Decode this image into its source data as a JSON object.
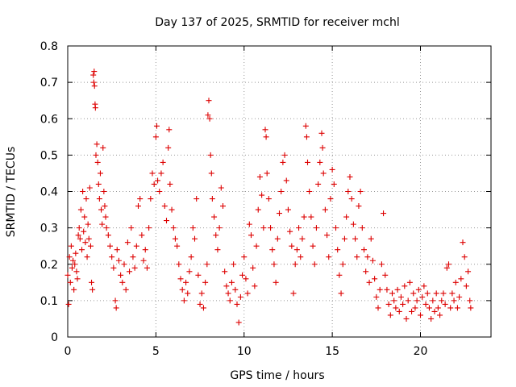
{
  "chart_data": {
    "type": "scatter",
    "title": "Day 137 of 2025, SRMTID for receiver mchl",
    "xlabel": "GPS time / hours",
    "ylabel": "SRMTID / TECUs",
    "xlim": [
      0,
      24
    ],
    "ylim": [
      0,
      0.8
    ],
    "xticks": [
      0,
      5,
      10,
      15,
      20
    ],
    "xtick_labels": [
      "0",
      "5",
      "10",
      "15",
      "20"
    ],
    "yticks": [
      0,
      0.1,
      0.2,
      0.3,
      0.4,
      0.5,
      0.6,
      0.7,
      0.8
    ],
    "ytick_labels": [
      "0",
      "0.1",
      "0.2",
      "0.3",
      "0.4",
      "0.5",
      "0.6",
      "0.7",
      "0.8"
    ],
    "grid": true,
    "marker": "+",
    "color": "#dd0000",
    "series": [
      {
        "name": "SRMTID",
        "points": [
          [
            0.0,
            0.17
          ],
          [
            0.05,
            0.09
          ],
          [
            0.1,
            0.22
          ],
          [
            0.15,
            0.15
          ],
          [
            0.2,
            0.25
          ],
          [
            0.25,
            0.19
          ],
          [
            0.3,
            0.21
          ],
          [
            0.35,
            0.13
          ],
          [
            0.4,
            0.2
          ],
          [
            0.45,
            0.23
          ],
          [
            0.5,
            0.18
          ],
          [
            0.55,
            0.16
          ],
          [
            0.6,
            0.28
          ],
          [
            0.65,
            0.3
          ],
          [
            0.7,
            0.27
          ],
          [
            0.75,
            0.35
          ],
          [
            0.8,
            0.24
          ],
          [
            0.85,
            0.4
          ],
          [
            0.9,
            0.29
          ],
          [
            0.95,
            0.33
          ],
          [
            1.0,
            0.26
          ],
          [
            1.05,
            0.38
          ],
          [
            1.1,
            0.22
          ],
          [
            1.15,
            0.31
          ],
          [
            1.2,
            0.27
          ],
          [
            1.25,
            0.41
          ],
          [
            1.3,
            0.25
          ],
          [
            1.35,
            0.15
          ],
          [
            1.4,
            0.13
          ],
          [
            1.45,
            0.72
          ],
          [
            1.48,
            0.7
          ],
          [
            1.5,
            0.73
          ],
          [
            1.52,
            0.69
          ],
          [
            1.55,
            0.64
          ],
          [
            1.57,
            0.63
          ],
          [
            1.6,
            0.5
          ],
          [
            1.65,
            0.53
          ],
          [
            1.7,
            0.48
          ],
          [
            1.75,
            0.42
          ],
          [
            1.8,
            0.38
          ],
          [
            1.85,
            0.45
          ],
          [
            1.9,
            0.35
          ],
          [
            1.95,
            0.31
          ],
          [
            2.0,
            0.52
          ],
          [
            2.05,
            0.4
          ],
          [
            2.1,
            0.36
          ],
          [
            2.15,
            0.33
          ],
          [
            2.2,
            0.3
          ],
          [
            2.3,
            0.28
          ],
          [
            2.4,
            0.25
          ],
          [
            2.5,
            0.22
          ],
          [
            2.6,
            0.19
          ],
          [
            2.7,
            0.1
          ],
          [
            2.75,
            0.08
          ],
          [
            2.8,
            0.24
          ],
          [
            2.9,
            0.21
          ],
          [
            3.0,
            0.17
          ],
          [
            3.1,
            0.15
          ],
          [
            3.2,
            0.2
          ],
          [
            3.3,
            0.13
          ],
          [
            3.4,
            0.26
          ],
          [
            3.5,
            0.18
          ],
          [
            3.6,
            0.3
          ],
          [
            3.7,
            0.22
          ],
          [
            3.8,
            0.19
          ],
          [
            3.9,
            0.25
          ],
          [
            4.0,
            0.36
          ],
          [
            4.1,
            0.38
          ],
          [
            4.2,
            0.28
          ],
          [
            4.3,
            0.21
          ],
          [
            4.4,
            0.24
          ],
          [
            4.5,
            0.19
          ],
          [
            4.6,
            0.3
          ],
          [
            4.7,
            0.38
          ],
          [
            4.8,
            0.45
          ],
          [
            4.9,
            0.42
          ],
          [
            5.0,
            0.55
          ],
          [
            5.05,
            0.58
          ],
          [
            5.1,
            0.43
          ],
          [
            5.2,
            0.4
          ],
          [
            5.3,
            0.45
          ],
          [
            5.4,
            0.48
          ],
          [
            5.5,
            0.36
          ],
          [
            5.6,
            0.32
          ],
          [
            5.7,
            0.52
          ],
          [
            5.75,
            0.57
          ],
          [
            5.8,
            0.42
          ],
          [
            5.9,
            0.35
          ],
          [
            6.0,
            0.3
          ],
          [
            6.1,
            0.27
          ],
          [
            6.2,
            0.25
          ],
          [
            6.3,
            0.2
          ],
          [
            6.4,
            0.16
          ],
          [
            6.5,
            0.13
          ],
          [
            6.6,
            0.1
          ],
          [
            6.7,
            0.15
          ],
          [
            6.8,
            0.12
          ],
          [
            6.9,
            0.18
          ],
          [
            7.0,
            0.22
          ],
          [
            7.1,
            0.3
          ],
          [
            7.2,
            0.27
          ],
          [
            7.3,
            0.38
          ],
          [
            7.4,
            0.17
          ],
          [
            7.5,
            0.09
          ],
          [
            7.6,
            0.12
          ],
          [
            7.7,
            0.08
          ],
          [
            7.8,
            0.15
          ],
          [
            7.9,
            0.2
          ],
          [
            7.95,
            0.61
          ],
          [
            8.0,
            0.65
          ],
          [
            8.05,
            0.6
          ],
          [
            8.1,
            0.5
          ],
          [
            8.15,
            0.45
          ],
          [
            8.2,
            0.38
          ],
          [
            8.3,
            0.33
          ],
          [
            8.4,
            0.28
          ],
          [
            8.5,
            0.24
          ],
          [
            8.6,
            0.3
          ],
          [
            8.7,
            0.41
          ],
          [
            8.8,
            0.36
          ],
          [
            8.9,
            0.18
          ],
          [
            9.0,
            0.14
          ],
          [
            9.1,
            0.12
          ],
          [
            9.2,
            0.1
          ],
          [
            9.3,
            0.15
          ],
          [
            9.4,
            0.2
          ],
          [
            9.5,
            0.13
          ],
          [
            9.6,
            0.09
          ],
          [
            9.7,
            0.04
          ],
          [
            9.8,
            0.11
          ],
          [
            9.9,
            0.17
          ],
          [
            10.0,
            0.22
          ],
          [
            10.1,
            0.16
          ],
          [
            10.2,
            0.12
          ],
          [
            10.3,
            0.31
          ],
          [
            10.4,
            0.28
          ],
          [
            10.5,
            0.19
          ],
          [
            10.6,
            0.14
          ],
          [
            10.7,
            0.25
          ],
          [
            10.8,
            0.35
          ],
          [
            10.9,
            0.44
          ],
          [
            11.0,
            0.39
          ],
          [
            11.1,
            0.3
          ],
          [
            11.2,
            0.57
          ],
          [
            11.25,
            0.55
          ],
          [
            11.3,
            0.45
          ],
          [
            11.4,
            0.38
          ],
          [
            11.5,
            0.3
          ],
          [
            11.6,
            0.24
          ],
          [
            11.7,
            0.2
          ],
          [
            11.8,
            0.15
          ],
          [
            11.9,
            0.27
          ],
          [
            12.0,
            0.34
          ],
          [
            12.1,
            0.4
          ],
          [
            12.2,
            0.48
          ],
          [
            12.3,
            0.5
          ],
          [
            12.4,
            0.43
          ],
          [
            12.5,
            0.35
          ],
          [
            12.6,
            0.29
          ],
          [
            12.7,
            0.25
          ],
          [
            12.8,
            0.12
          ],
          [
            12.9,
            0.2
          ],
          [
            13.0,
            0.24
          ],
          [
            13.1,
            0.3
          ],
          [
            13.2,
            0.22
          ],
          [
            13.3,
            0.27
          ],
          [
            13.4,
            0.33
          ],
          [
            13.5,
            0.58
          ],
          [
            13.55,
            0.55
          ],
          [
            13.6,
            0.48
          ],
          [
            13.7,
            0.4
          ],
          [
            13.8,
            0.33
          ],
          [
            13.9,
            0.25
          ],
          [
            14.0,
            0.2
          ],
          [
            14.1,
            0.3
          ],
          [
            14.2,
            0.42
          ],
          [
            14.3,
            0.48
          ],
          [
            14.4,
            0.56
          ],
          [
            14.45,
            0.52
          ],
          [
            14.5,
            0.45
          ],
          [
            14.6,
            0.35
          ],
          [
            14.7,
            0.28
          ],
          [
            14.8,
            0.22
          ],
          [
            14.9,
            0.38
          ],
          [
            15.0,
            0.46
          ],
          [
            15.1,
            0.42
          ],
          [
            15.2,
            0.3
          ],
          [
            15.3,
            0.24
          ],
          [
            15.4,
            0.17
          ],
          [
            15.5,
            0.12
          ],
          [
            15.6,
            0.2
          ],
          [
            15.7,
            0.27
          ],
          [
            15.8,
            0.33
          ],
          [
            15.9,
            0.4
          ],
          [
            16.0,
            0.44
          ],
          [
            16.1,
            0.38
          ],
          [
            16.2,
            0.31
          ],
          [
            16.3,
            0.27
          ],
          [
            16.4,
            0.22
          ],
          [
            16.5,
            0.36
          ],
          [
            16.6,
            0.4
          ],
          [
            16.7,
            0.3
          ],
          [
            16.8,
            0.24
          ],
          [
            16.9,
            0.18
          ],
          [
            17.0,
            0.22
          ],
          [
            17.1,
            0.15
          ],
          [
            17.2,
            0.27
          ],
          [
            17.3,
            0.21
          ],
          [
            17.4,
            0.16
          ],
          [
            17.5,
            0.11
          ],
          [
            17.6,
            0.08
          ],
          [
            17.7,
            0.13
          ],
          [
            17.8,
            0.2
          ],
          [
            17.9,
            0.34
          ],
          [
            18.0,
            0.17
          ],
          [
            18.1,
            0.13
          ],
          [
            18.2,
            0.09
          ],
          [
            18.3,
            0.06
          ],
          [
            18.4,
            0.12
          ],
          [
            18.5,
            0.1
          ],
          [
            18.6,
            0.08
          ],
          [
            18.7,
            0.13
          ],
          [
            18.8,
            0.07
          ],
          [
            18.9,
            0.11
          ],
          [
            19.0,
            0.09
          ],
          [
            19.1,
            0.14
          ],
          [
            19.2,
            0.05
          ],
          [
            19.3,
            0.1
          ],
          [
            19.4,
            0.15
          ],
          [
            19.5,
            0.07
          ],
          [
            19.6,
            0.12
          ],
          [
            19.7,
            0.08
          ],
          [
            19.8,
            0.1
          ],
          [
            19.9,
            0.13
          ],
          [
            20.0,
            0.06
          ],
          [
            20.1,
            0.11
          ],
          [
            20.2,
            0.14
          ],
          [
            20.3,
            0.09
          ],
          [
            20.4,
            0.12
          ],
          [
            20.5,
            0.08
          ],
          [
            20.6,
            0.05
          ],
          [
            20.7,
            0.1
          ],
          [
            20.8,
            0.07
          ],
          [
            20.9,
            0.12
          ],
          [
            21.0,
            0.08
          ],
          [
            21.1,
            0.06
          ],
          [
            21.2,
            0.1
          ],
          [
            21.3,
            0.12
          ],
          [
            21.4,
            0.09
          ],
          [
            21.5,
            0.19
          ],
          [
            21.6,
            0.2
          ],
          [
            21.7,
            0.08
          ],
          [
            21.8,
            0.12
          ],
          [
            21.9,
            0.1
          ],
          [
            22.0,
            0.15
          ],
          [
            22.1,
            0.08
          ],
          [
            22.2,
            0.11
          ],
          [
            22.3,
            0.16
          ],
          [
            22.4,
            0.26
          ],
          [
            22.5,
            0.22
          ],
          [
            22.6,
            0.14
          ],
          [
            22.7,
            0.18
          ],
          [
            22.8,
            0.1
          ],
          [
            22.85,
            0.08
          ]
        ]
      }
    ]
  }
}
